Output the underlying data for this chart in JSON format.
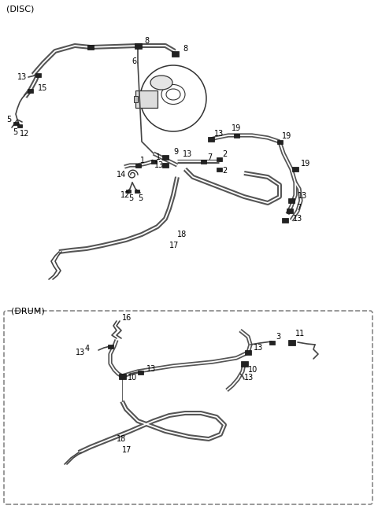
{
  "bg_color": "#ffffff",
  "line_color": "#333333",
  "text_color": "#000000",
  "disc_title": "(DISC)",
  "drum_title": "(DRUM)",
  "line_gray": "#888888",
  "dark_gray": "#444444"
}
